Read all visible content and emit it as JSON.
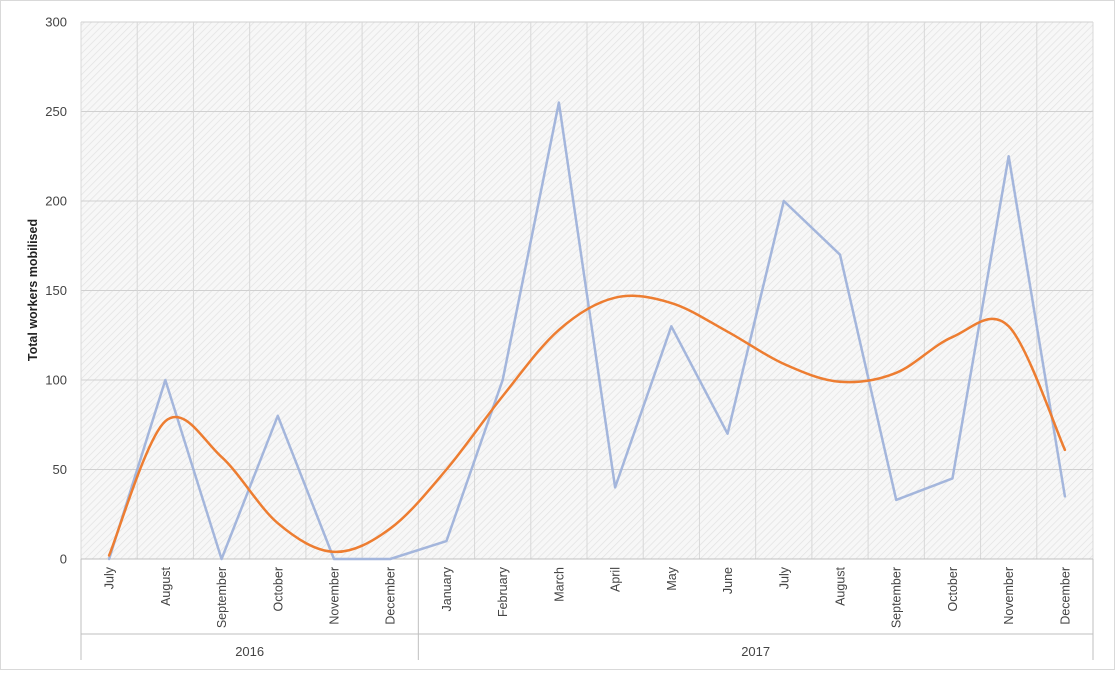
{
  "chart_data": {
    "type": "line",
    "ylabel": "Total workers mobilised",
    "ylim": [
      0,
      300
    ],
    "yticks": [
      0,
      50,
      100,
      150,
      200,
      250,
      300
    ],
    "grid": true,
    "categories": [
      "July",
      "August",
      "September",
      "October",
      "November",
      "December",
      "January",
      "February",
      "March",
      "April",
      "May",
      "June",
      "July",
      "August",
      "September",
      "October",
      "November",
      "December"
    ],
    "groups": [
      {
        "label": "2016",
        "count": 6
      },
      {
        "label": "2017",
        "count": 12
      }
    ],
    "series": [
      {
        "values": [
          0,
          100,
          0,
          80,
          0,
          0,
          10,
          100,
          255,
          40,
          130,
          70,
          200,
          170,
          33,
          45,
          225,
          35
        ],
        "color": "#a4b6dc"
      },
      {
        "type": "trend",
        "values": [
          2,
          77,
          57,
          20,
          4,
          17,
          50,
          91,
          128,
          146,
          143,
          127,
          109,
          99,
          104,
          124,
          130,
          61
        ],
        "color": "#ed7d31"
      }
    ]
  }
}
